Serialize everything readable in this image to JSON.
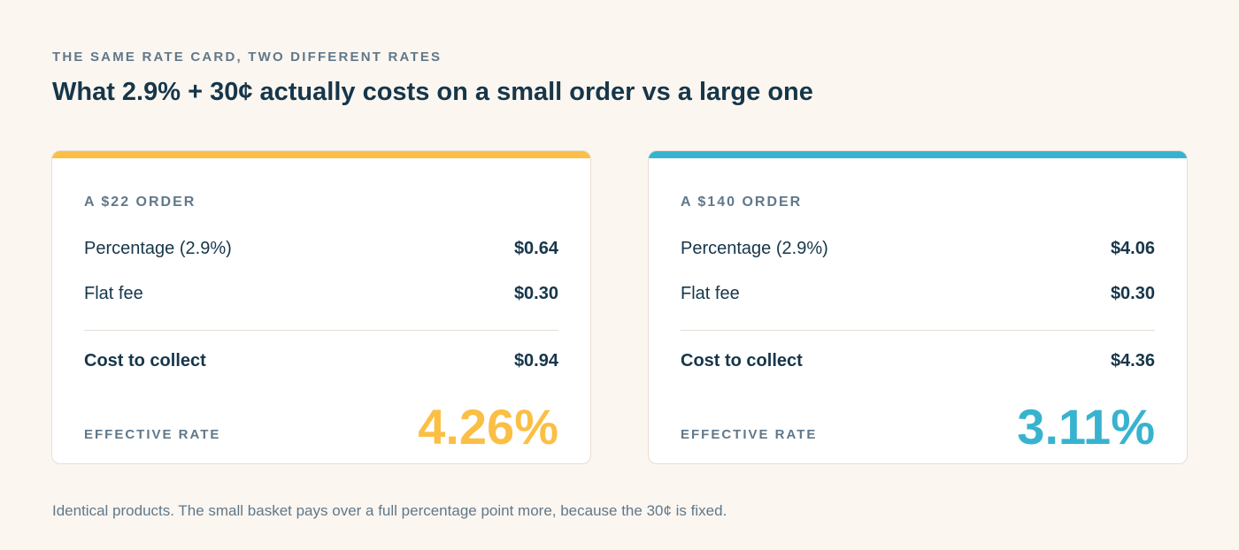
{
  "header": {
    "eyebrow": "THE SAME RATE CARD, TWO DIFFERENT RATES",
    "title": "What 2.9% + 30¢ actually costs on a small order vs a large one"
  },
  "cards": [
    {
      "label": "A $22 ORDER",
      "accent_color": "#fbbf45",
      "rows": [
        {
          "label": "Percentage (2.9%)",
          "value": "$0.64"
        },
        {
          "label": "Flat fee",
          "value": "$0.30"
        }
      ],
      "total": {
        "label": "Cost to collect",
        "value": "$0.94"
      },
      "effective_rate_label": "EFFECTIVE RATE",
      "effective_rate_value": "4.26%"
    },
    {
      "label": "A $140 ORDER",
      "accent_color": "#38b3cf",
      "rows": [
        {
          "label": "Percentage (2.9%)",
          "value": "$4.06"
        },
        {
          "label": "Flat fee",
          "value": "$0.30"
        }
      ],
      "total": {
        "label": "Cost to collect",
        "value": "$4.36"
      },
      "effective_rate_label": "EFFECTIVE RATE",
      "effective_rate_value": "3.11%"
    }
  ],
  "footnote": "Identical products. The small basket pays over a full percentage point more, because the 30¢ is fixed."
}
